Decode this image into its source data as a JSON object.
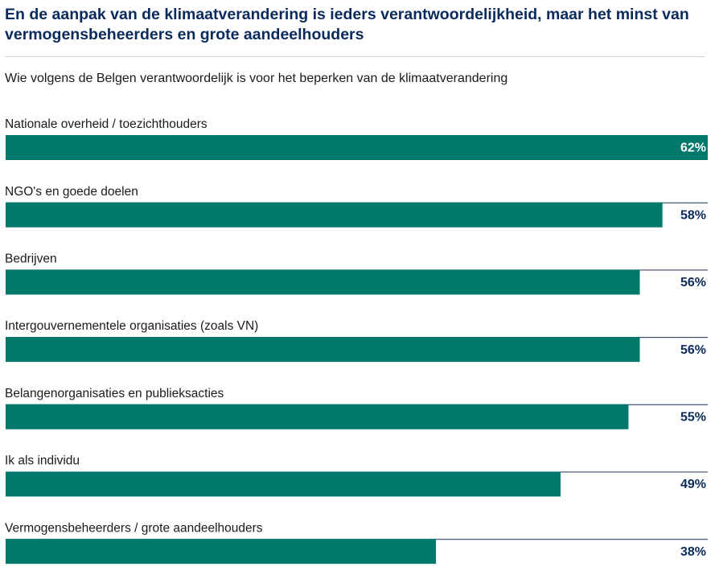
{
  "title": "En de aanpak van de klimaatverandering is ieders verantwoordelijkheid, maar het minst van vermogensbeheerders en grote aandeelhouders",
  "subtitle": "Wie volgens de Belgen verantwoordelijk is voor het beperken van de klimaatverandering",
  "colors": {
    "bar": "#00796b",
    "baseline": "#1c2c55",
    "title": "#0b2a5c",
    "value_label": "#0b2a5c",
    "value_label_inside": "#ffffff"
  },
  "chart_data": {
    "type": "bar",
    "orientation": "horizontal",
    "categories": [
      "Nationale overheid / toezichthouders",
      "NGO's en goede doelen",
      "Bedrijven",
      "Intergouvernementele organisaties (zoals VN)",
      "Belangenorganisaties en publieksacties",
      "Ik als individu",
      "Vermogensbeheerders / grote aandeelhouders"
    ],
    "values": [
      62,
      58,
      56,
      56,
      55,
      49,
      38
    ],
    "value_labels": [
      "62%",
      "58%",
      "56%",
      "56%",
      "55%",
      "49%",
      "38%"
    ],
    "unit": "%",
    "xlim": [
      0,
      62
    ],
    "grid": false,
    "legend": "none"
  }
}
